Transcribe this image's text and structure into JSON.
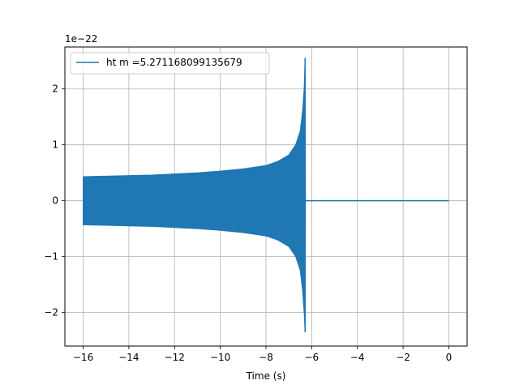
{
  "chart_data": {
    "type": "line",
    "title": "",
    "xlabel": "Time (s)",
    "ylabel": "",
    "y_scale_label": "1e−22",
    "xlim": [
      -16.8,
      0.8
    ],
    "ylim": [
      -2.6,
      2.75
    ],
    "x_ticks": [
      -16,
      -14,
      -12,
      -10,
      -8,
      -6,
      -4,
      -2,
      0
    ],
    "x_tick_labels": [
      "−16",
      "−14",
      "−12",
      "−10",
      "−8",
      "−6",
      "−4",
      "−2",
      "0"
    ],
    "y_ticks": [
      -2,
      -1,
      0,
      1,
      2
    ],
    "y_tick_labels": [
      "−2",
      "−1",
      "0",
      "1",
      "2"
    ],
    "grid": true,
    "legend_position": "top-left",
    "series": [
      {
        "name": "ht m =5.271168099135679",
        "color": "#1f77b4",
        "description": "chirp waveform, filled envelope",
        "x_start": -16,
        "x_merger": -6.27,
        "x_end": 0,
        "envelope": [
          {
            "x": -16.0,
            "upper": 0.43,
            "lower": -0.43
          },
          {
            "x": -15.0,
            "upper": 0.44,
            "lower": -0.44
          },
          {
            "x": -14.0,
            "upper": 0.45,
            "lower": -0.45
          },
          {
            "x": -13.0,
            "upper": 0.46,
            "lower": -0.46
          },
          {
            "x": -12.0,
            "upper": 0.48,
            "lower": -0.48
          },
          {
            "x": -11.0,
            "upper": 0.5,
            "lower": -0.5
          },
          {
            "x": -10.0,
            "upper": 0.53,
            "lower": -0.53
          },
          {
            "x": -9.0,
            "upper": 0.57,
            "lower": -0.57
          },
          {
            "x": -8.0,
            "upper": 0.63,
            "lower": -0.63
          },
          {
            "x": -7.5,
            "upper": 0.7,
            "lower": -0.7
          },
          {
            "x": -7.0,
            "upper": 0.82,
            "lower": -0.82
          },
          {
            "x": -6.7,
            "upper": 1.0,
            "lower": -1.0
          },
          {
            "x": -6.5,
            "upper": 1.25,
            "lower": -1.25
          },
          {
            "x": -6.4,
            "upper": 1.6,
            "lower": -1.6
          },
          {
            "x": -6.33,
            "upper": 2.0,
            "lower": -2.0
          },
          {
            "x": -6.29,
            "upper": 2.55,
            "lower": -2.35
          },
          {
            "x": -6.27,
            "upper": 0.0,
            "lower": 0.0
          }
        ]
      }
    ]
  }
}
